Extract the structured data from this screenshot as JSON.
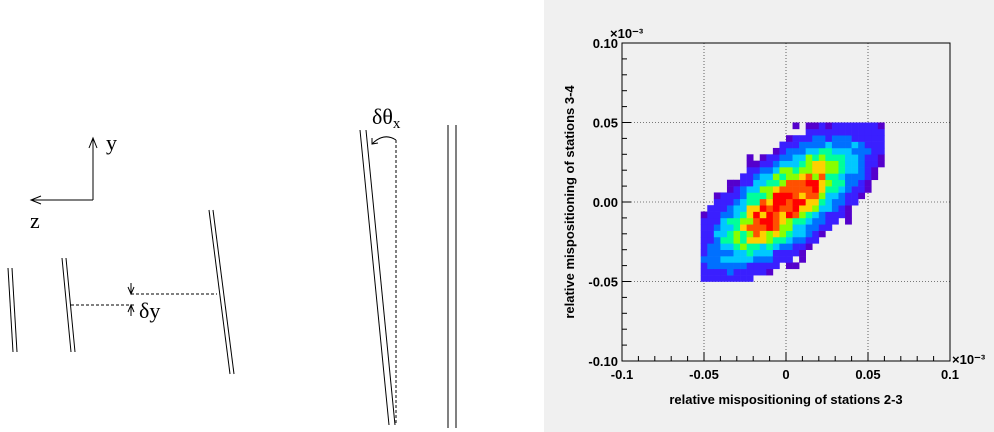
{
  "diagram": {
    "axis_y_label": "y",
    "axis_z_label": "z",
    "delta_y_label": "δy",
    "delta_theta_symbol": "δθ",
    "delta_theta_subscript": "x"
  },
  "chart_data": {
    "type": "heatmap",
    "xlabel": "relative mispositioning of stations 2-3",
    "ylabel": "relative mispositioning of stations 3-4",
    "x_exponent": "×10⁻³",
    "y_exponent": "×10⁻³",
    "xlim": [
      -0.1,
      0.1
    ],
    "ylim": [
      -0.1,
      0.1
    ],
    "x_ticks": [
      "-0.1",
      "-0.05",
      "0",
      "0.05",
      "0.1"
    ],
    "x_tick_values": [
      -0.1,
      -0.05,
      0,
      0.05,
      0.1
    ],
    "y_ticks": [
      "0.10",
      "0.05",
      "0.00",
      "-0.05",
      "-0.10"
    ],
    "y_tick_values": [
      0.1,
      0.05,
      0.0,
      -0.05,
      -0.1
    ],
    "grid": true,
    "background": "#f0f0f0",
    "distribution": {
      "mean_x": 0.0,
      "mean_y": 0.0,
      "sigma_major": 0.032,
      "sigma_minor": 0.013,
      "angle_deg": 40,
      "x_range": [
        -0.052,
        0.06
      ],
      "y_range": [
        -0.05,
        0.05
      ]
    },
    "colors": [
      "#5500cc",
      "#3a1fff",
      "#0070ff",
      "#00c8ff",
      "#00ff9a",
      "#88ff00",
      "#ffd000",
      "#ff5000",
      "#ff0000"
    ]
  }
}
